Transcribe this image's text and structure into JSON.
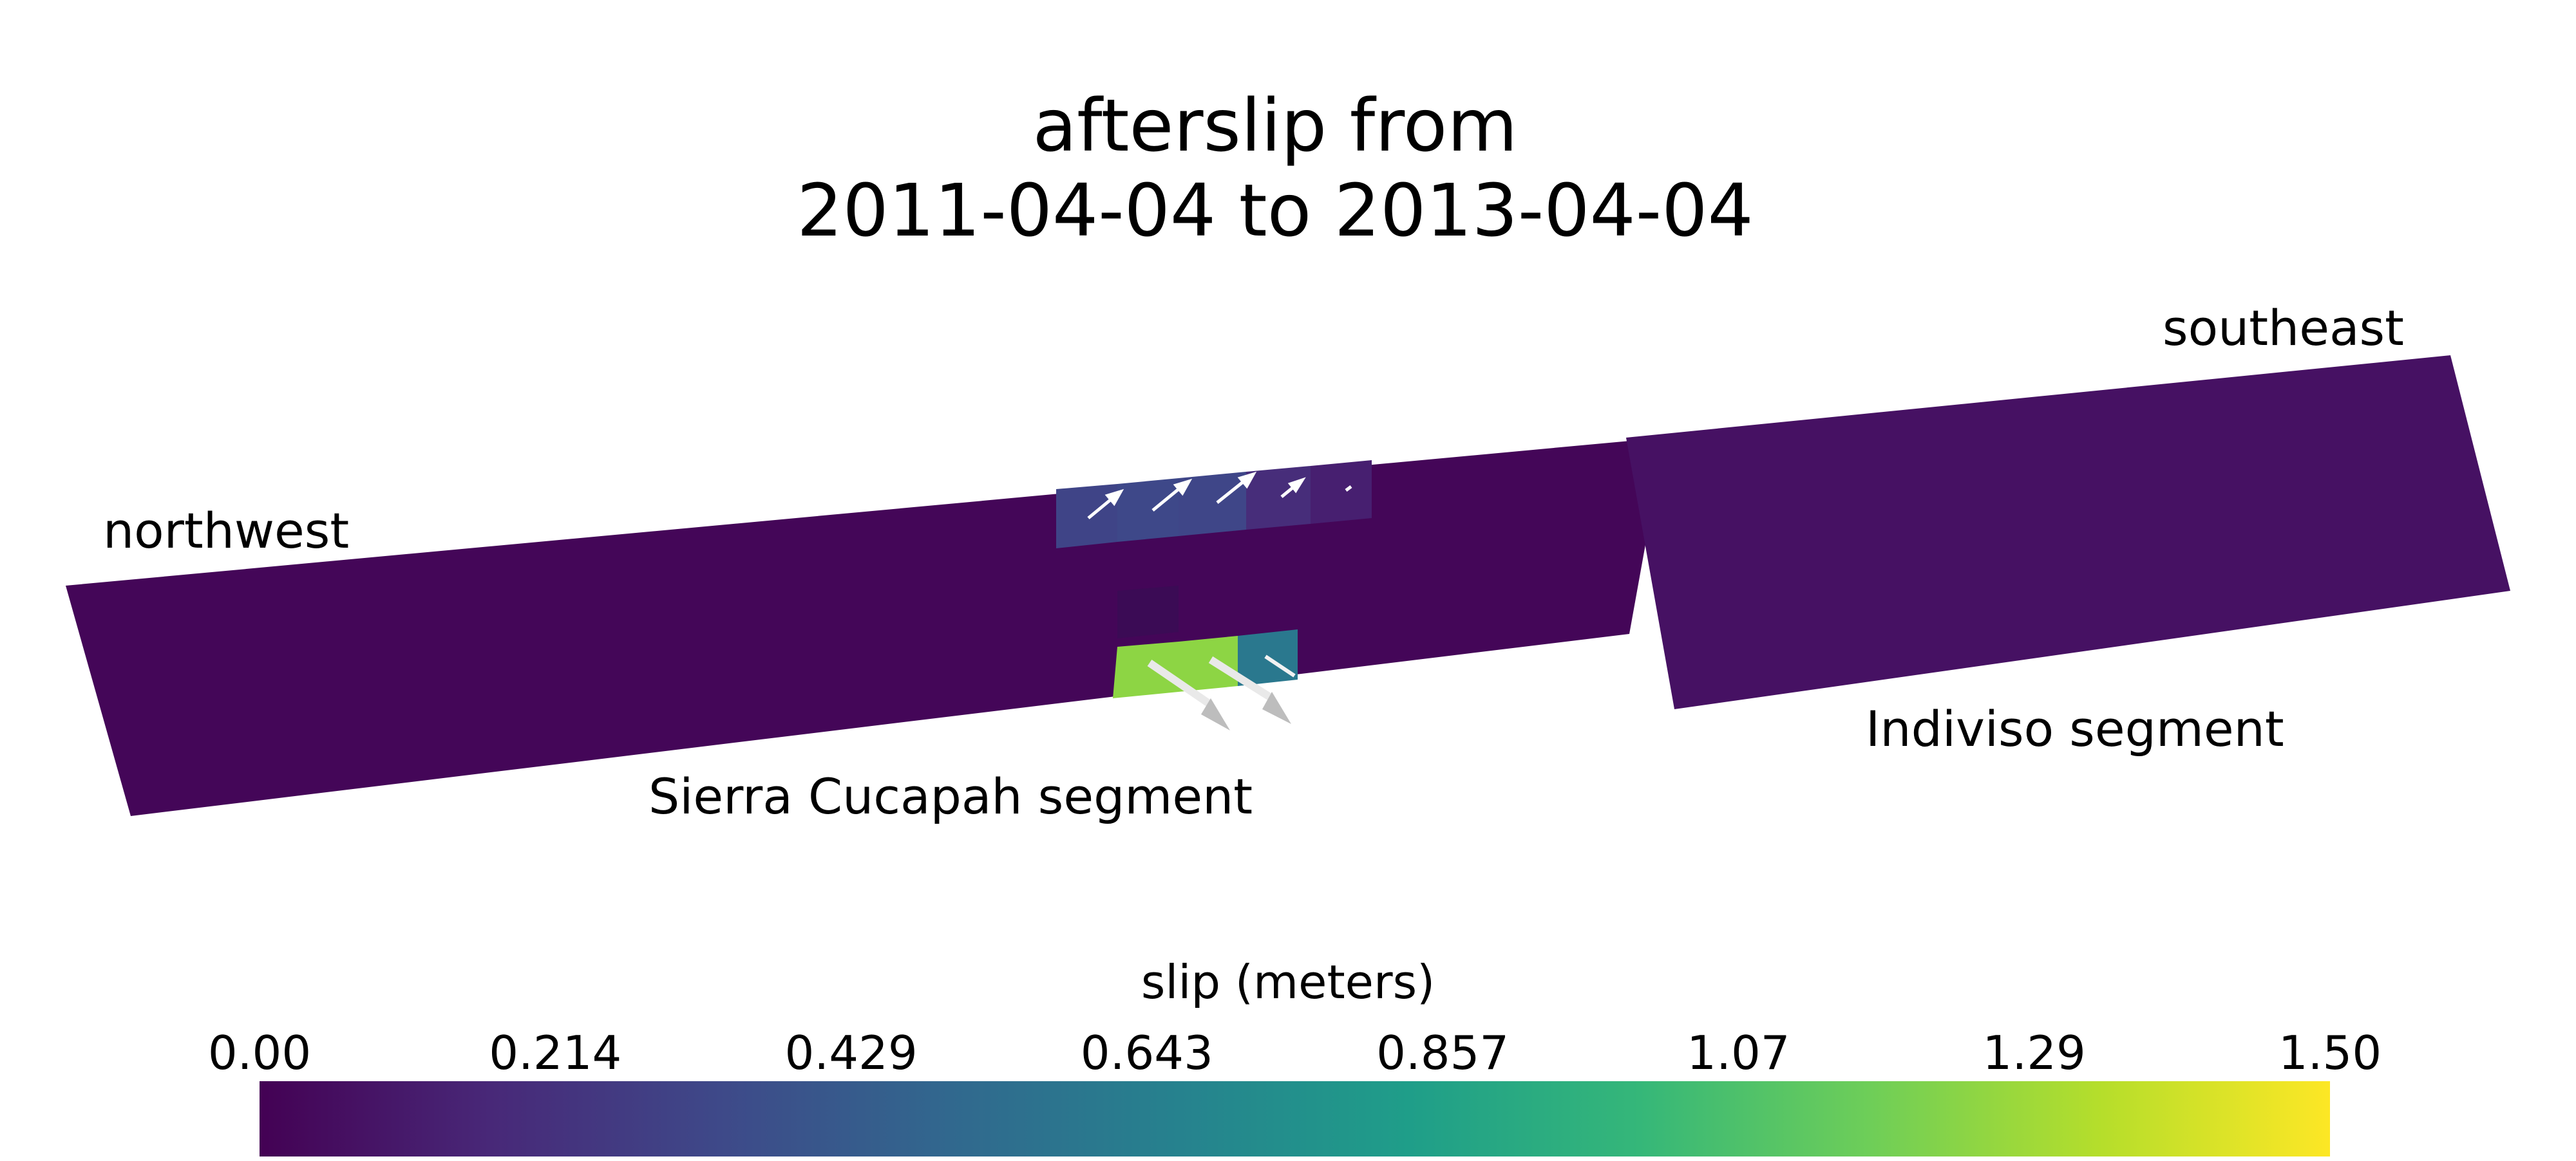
{
  "title": {
    "line1": "afterslip from",
    "line2": "2011-04-04 to 2013-04-04"
  },
  "labels": {
    "northwest": "northwest",
    "southeast": "southeast",
    "segment_west": "Sierra Cucapah segment",
    "segment_east": "Indiviso segment"
  },
  "colorbar": {
    "title": "slip (meters)",
    "colormap": "viridis",
    "range": [
      0.0,
      1.5
    ],
    "ticks": [
      "0.00",
      "0.214",
      "0.429",
      "0.643",
      "0.857",
      "1.07",
      "1.29",
      "1.50"
    ],
    "stops": [
      "#440154",
      "#482878",
      "#3e4989",
      "#31688e",
      "#26828e",
      "#1f9e89",
      "#35b779",
      "#6ece58",
      "#b5de2b",
      "#fde725"
    ]
  },
  "slip_patches": {
    "upper_row": [
      0.31,
      0.33,
      0.32,
      0.19,
      0.13
    ],
    "lower_row": [
      1.24,
      1.24,
      0.6
    ],
    "background_west": 0.02,
    "background_east": 0.07
  }
}
